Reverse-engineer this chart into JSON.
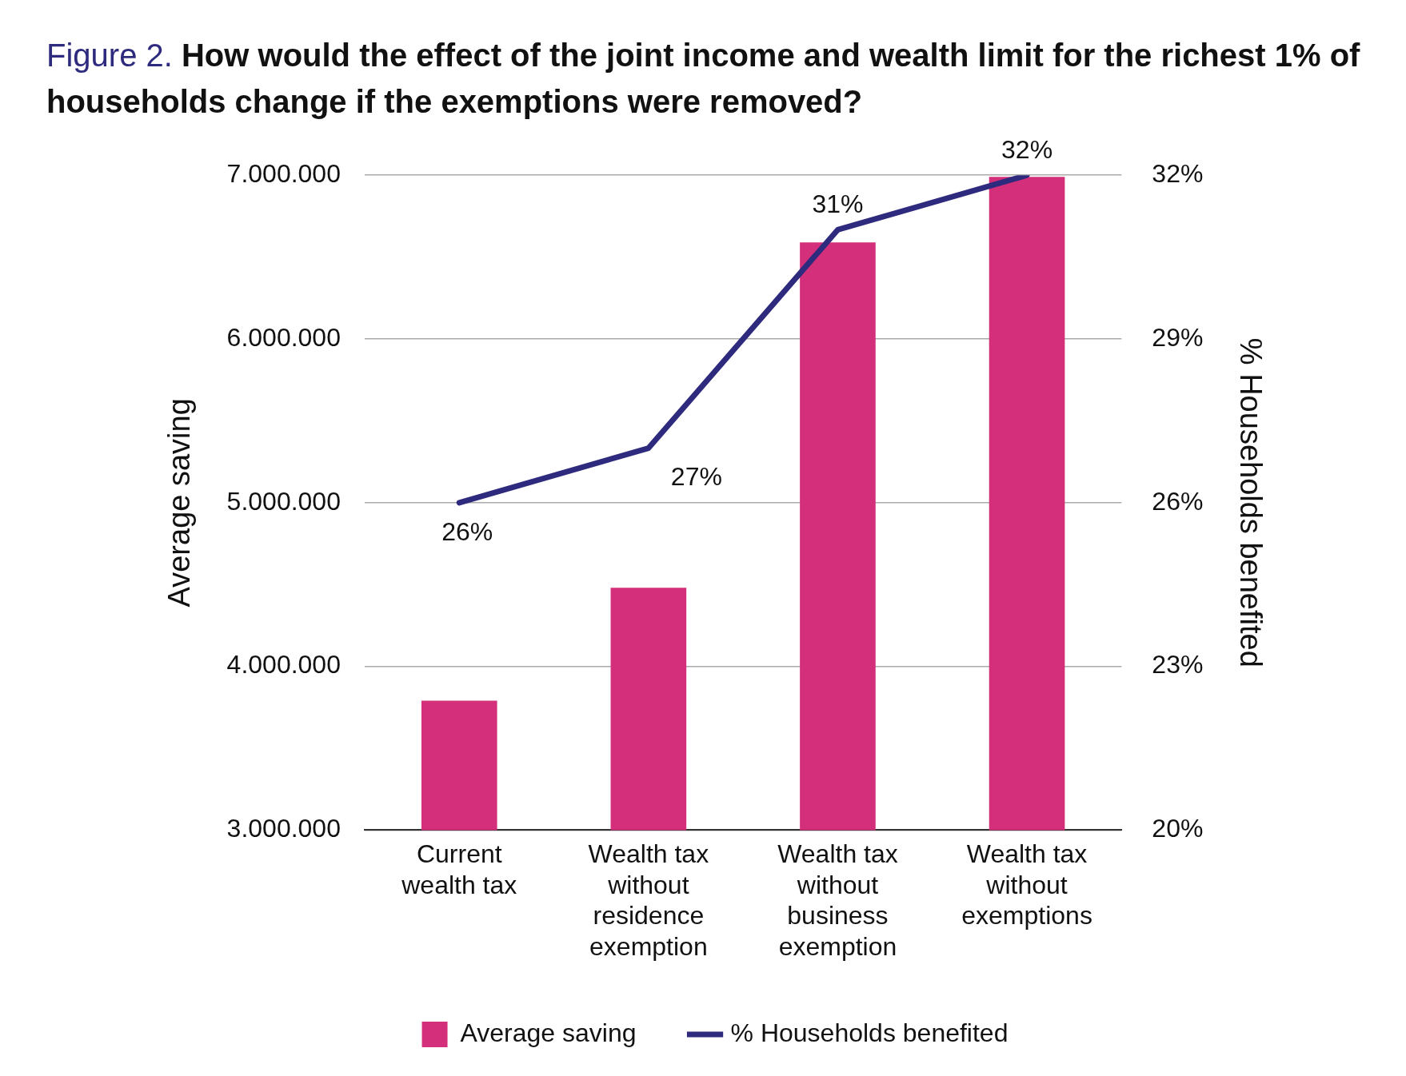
{
  "chart_data": {
    "type": "bar",
    "title": "Figure 2. How would the effect of the joint income and wealth limit for the richest 1% of households change if the exemptions were removed?",
    "categories": [
      "Current wealth tax",
      "Wealth tax without residence exemption",
      "Wealth tax without business exemption",
      "Wealth tax without exemptions"
    ],
    "series": [
      {
        "name": "Average saving",
        "color": "#d42f7a",
        "values": [
          3790000,
          4480000,
          6590000,
          6990000
        ]
      },
      {
        "name": "% Households benefited",
        "type": "line",
        "axis": "y2",
        "color": "#2e2a7e",
        "values": [
          26,
          27,
          31,
          32
        ],
        "value_labels": [
          "26%",
          "27%",
          "31%",
          "32%"
        ]
      }
    ],
    "ylabel": "Average saving",
    "y2label": "% Households benefited",
    "ylim": [
      3000000,
      7000000
    ],
    "yticks": [
      {
        "value": 3000000,
        "label": "3.000.000"
      },
      {
        "value": 4000000,
        "label": "4.000.000"
      },
      {
        "value": 5000000,
        "label": "5.000.000"
      },
      {
        "value": 6000000,
        "label": "6.000.000"
      },
      {
        "value": 7000000,
        "label": "7.000.000"
      }
    ],
    "y2lim": [
      20,
      32
    ],
    "y2ticks": [
      {
        "value": 20,
        "label": "20%"
      },
      {
        "value": 23,
        "label": "23%"
      },
      {
        "value": 26,
        "label": "26%"
      },
      {
        "value": 29,
        "label": "29%"
      },
      {
        "value": 32,
        "label": "32%"
      }
    ],
    "grid": "y",
    "legend": "bottom",
    "marker": "none",
    "line_style": "solid"
  }
}
